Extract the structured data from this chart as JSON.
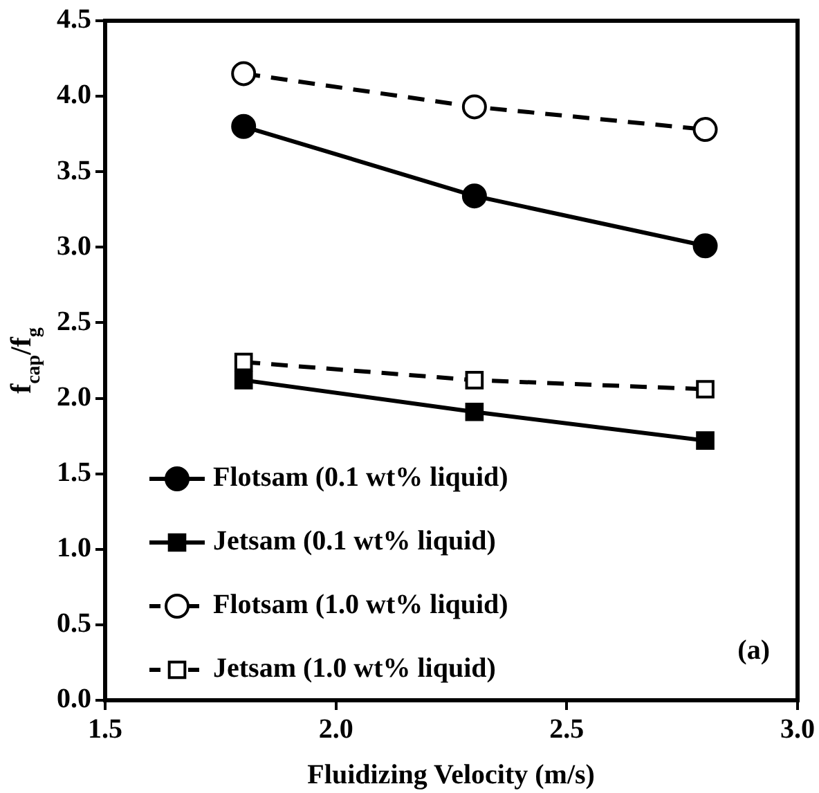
{
  "chart_data": {
    "type": "line",
    "xlabel": "Fluidizing Velocity (m/s)",
    "ylabel": "f$_{cap}$/f$_{g}$",
    "x": [
      1.8,
      2.3,
      2.8
    ],
    "series": [
      {
        "name": "Flotsam (0.1 wt% liquid)",
        "color": "#000000",
        "marker": "circle",
        "line_style": "solid",
        "values": [
          3.8,
          3.34,
          3.01
        ]
      },
      {
        "name": "Jetsam (0.1 wt% liquid)",
        "color": "#000000",
        "marker": "square",
        "line_style": "solid",
        "values": [
          2.12,
          1.91,
          1.72
        ]
      },
      {
        "name": "Flotsam (1.0 wt% liquid)",
        "color": "#000000",
        "marker": "circle",
        "line_style": "dashed",
        "values": [
          4.15,
          3.93,
          3.78
        ]
      },
      {
        "name": "Jetsam (1.0 wt% liquid)",
        "color": "#000000",
        "marker": "square",
        "line_style": "dashed",
        "values": [
          2.24,
          2.12,
          2.06
        ]
      }
    ],
    "xlim": [
      1.5,
      3.0
    ],
    "xticks": [
      1.5,
      {
        "value": 2,
        "label": "2.0"
      },
      2.5,
      {
        "value": 3,
        "label": "3.0"
      }
    ],
    "ylim": [
      0,
      4.5
    ],
    "yticks": [
      {
        "value": 0,
        "label": "0.0"
      },
      0.5,
      {
        "value": 1,
        "label": "1.0"
      },
      1.5,
      {
        "value": 2,
        "label": "2.0"
      },
      2.5,
      {
        "value": 3,
        "label": "3.0"
      },
      3.5,
      {
        "value": 4,
        "label": "4.0"
      },
      4.5
    ],
    "grid": false,
    "legend": "bottom left",
    "annotations": [
      "(a)"
    ]
  }
}
